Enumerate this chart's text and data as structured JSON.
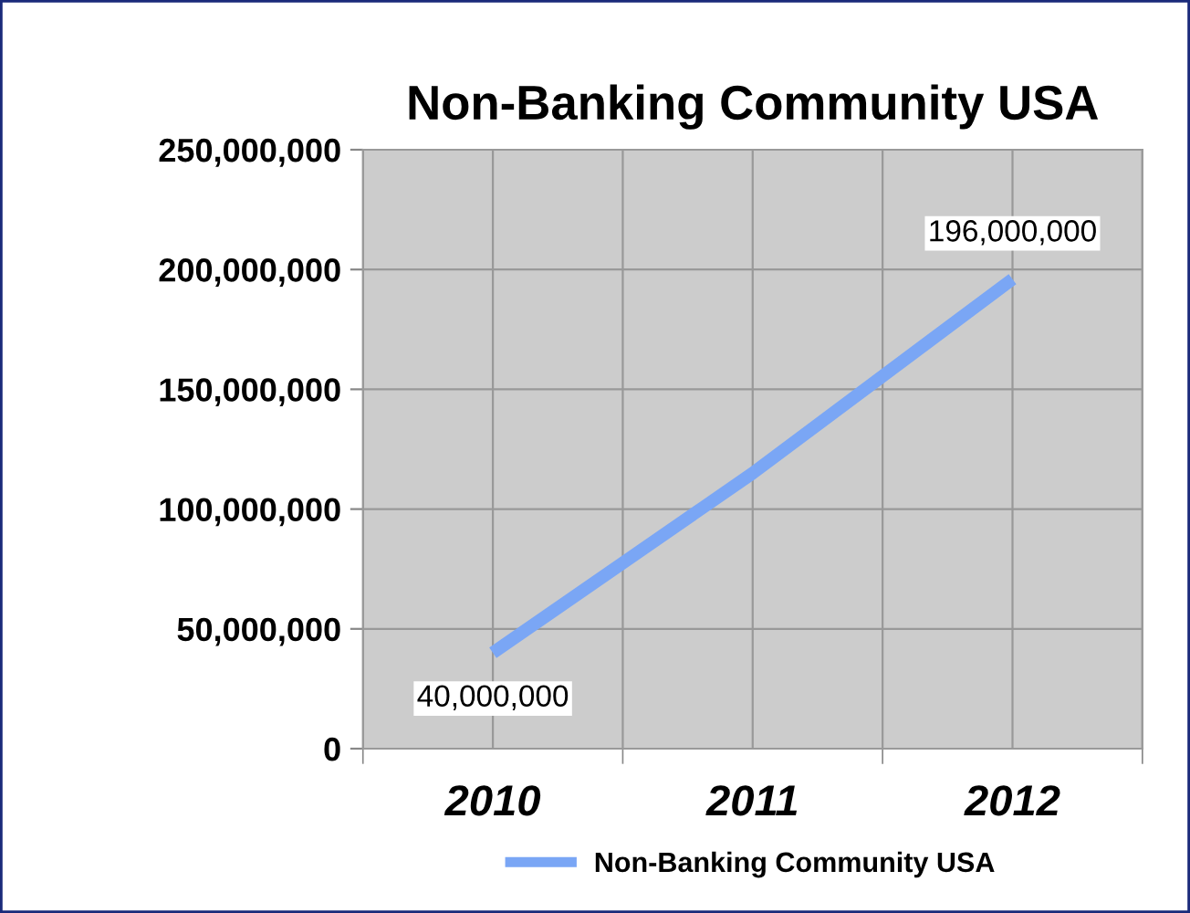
{
  "chart_data": {
    "type": "line",
    "title": "Non-Banking Community USA",
    "categories": [
      "2010",
      "2011",
      "2012"
    ],
    "series": [
      {
        "name": "Non-Banking Community USA",
        "color": "#7aa6f5",
        "values": [
          40000000,
          115000000,
          196000000
        ],
        "value_labels": [
          "40,000,000",
          null,
          "196,000,000"
        ]
      }
    ],
    "ylim": [
      0,
      250000000
    ],
    "yticks": [
      {
        "value": 0,
        "label": "0"
      },
      {
        "value": 50000000,
        "label": "50,000,000"
      },
      {
        "value": 100000000,
        "label": "100,000,000"
      },
      {
        "value": 150000000,
        "label": "150,000,000"
      },
      {
        "value": 200000000,
        "label": "200,000,000"
      },
      {
        "value": 250000000,
        "label": "250,000,000"
      }
    ],
    "grid": true,
    "legend": "bottom",
    "marker": "none",
    "line_style": "solid"
  }
}
